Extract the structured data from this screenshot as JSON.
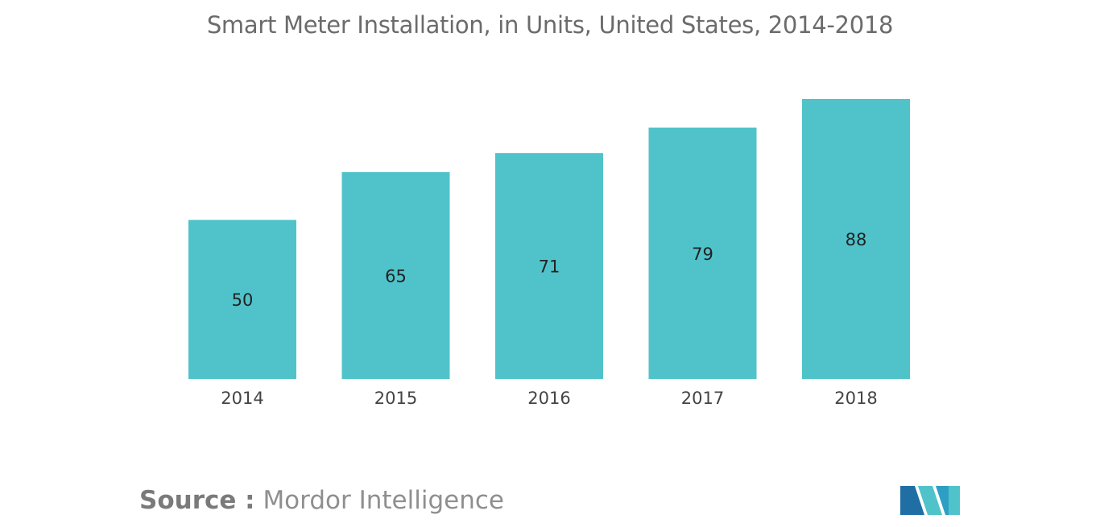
{
  "chart_data": {
    "type": "bar",
    "title": "Smart Meter Installation, in Units, United States, 2014-2018",
    "categories": [
      "2014",
      "2015",
      "2016",
      "2017",
      "2018"
    ],
    "values": [
      50,
      65,
      71,
      79,
      88
    ],
    "xlabel": "",
    "ylabel": "",
    "ylim": [
      0,
      88
    ],
    "grid": false,
    "legend": "none",
    "bar_color": "#50c3ca"
  },
  "source": {
    "prefix": "Source :",
    "name": "Mordor Intelligence"
  },
  "logo": {
    "icon": "mordor-intelligence-logo-icon",
    "colors": [
      "#1f6fa5",
      "#50c3ca",
      "#2d9fc4"
    ]
  }
}
